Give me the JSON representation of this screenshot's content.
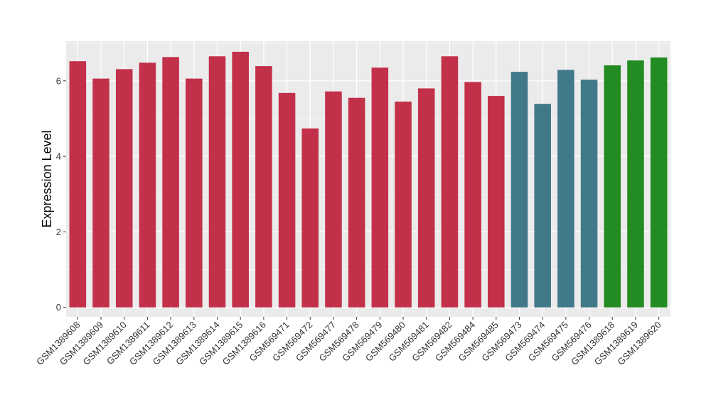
{
  "chart_data": {
    "type": "bar",
    "ylabel": "Expression Level",
    "xlabel": "",
    "ylim": [
      -0.25,
      7.05
    ],
    "yticks": [
      0,
      2,
      4,
      6
    ],
    "grid": true,
    "background": "#EBEBEB",
    "gridline_color": "#FFFFFF",
    "categories": [
      "GSM1389608",
      "GSM1389609",
      "GSM1389610",
      "GSM1389611",
      "GSM1389612",
      "GSM1389613",
      "GSM1389614",
      "GSM1389615",
      "GSM1389616",
      "GSM569471",
      "GSM569472",
      "GSM569477",
      "GSM569478",
      "GSM569479",
      "GSM569480",
      "GSM569481",
      "GSM569482",
      "GSM569484",
      "GSM569485",
      "GSM569473",
      "GSM569474",
      "GSM569475",
      "GSM569476",
      "GSM1389618",
      "GSM1389619",
      "GSM1389620"
    ],
    "values": [
      6.52,
      6.06,
      6.31,
      6.48,
      6.63,
      6.06,
      6.65,
      6.77,
      6.39,
      5.68,
      4.74,
      5.72,
      5.55,
      6.35,
      5.45,
      5.8,
      6.65,
      5.97,
      5.6,
      6.24,
      5.39,
      6.29,
      6.03,
      6.41,
      6.54,
      6.62
    ],
    "bar_colors": [
      "#C3304A",
      "#C3304A",
      "#C3304A",
      "#C3304A",
      "#C3304A",
      "#C3304A",
      "#C3304A",
      "#C3304A",
      "#C3304A",
      "#C3304A",
      "#C3304A",
      "#C3304A",
      "#C3304A",
      "#C3304A",
      "#C3304A",
      "#C3304A",
      "#C3304A",
      "#C3304A",
      "#C3304A",
      "#41788A",
      "#41788A",
      "#41788A",
      "#41788A",
      "#228B22",
      "#228B22",
      "#228B22"
    ]
  }
}
